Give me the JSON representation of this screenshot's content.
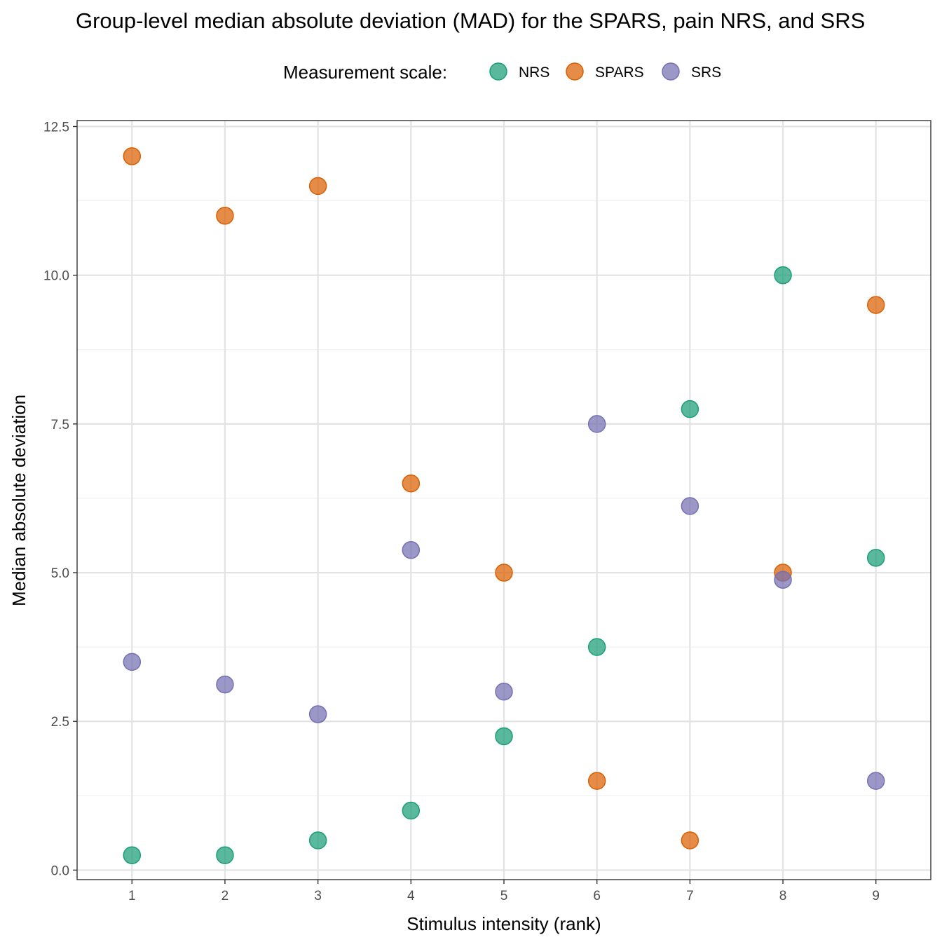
{
  "chart_data": {
    "type": "scatter",
    "title": "Group-level median absolute deviation (MAD) for the SPARS, pain NRS, and SRS",
    "xlabel": "Stimulus intensity (rank)",
    "ylabel": "Median absolute deviation",
    "xlim": [
      0.41,
      9.59
    ],
    "ylim": [
      -0.16,
      12.6
    ],
    "x_ticks": [
      "1",
      "2",
      "3",
      "4",
      "5",
      "6",
      "7",
      "8",
      "9"
    ],
    "y_ticks": [
      "0.0",
      "2.5",
      "5.0",
      "7.5",
      "10.0",
      "12.5"
    ],
    "grid": true,
    "legend": {
      "title": "Measurement scale:",
      "position": "top"
    },
    "series": [
      {
        "name": "NRS",
        "color": "#1B9E77",
        "x": [
          1,
          2,
          3,
          4,
          5,
          6,
          7,
          8,
          9
        ],
        "y": [
          0.25,
          0.25,
          0.5,
          1.0,
          2.25,
          3.75,
          7.75,
          10.0,
          5.25
        ]
      },
      {
        "name": "SPARS",
        "color": "#D95F02",
        "x": [
          1,
          2,
          3,
          4,
          5,
          6,
          7,
          8,
          9
        ],
        "y": [
          12.0,
          11.0,
          11.5,
          6.5,
          5.0,
          1.5,
          0.5,
          5.0,
          9.5
        ]
      },
      {
        "name": "SRS",
        "color": "#7570B3",
        "x": [
          1,
          2,
          3,
          4,
          5,
          6,
          7,
          8,
          9
        ],
        "y": [
          3.5,
          3.12,
          2.62,
          5.38,
          3.0,
          7.5,
          6.12,
          4.88,
          1.5
        ]
      }
    ]
  }
}
